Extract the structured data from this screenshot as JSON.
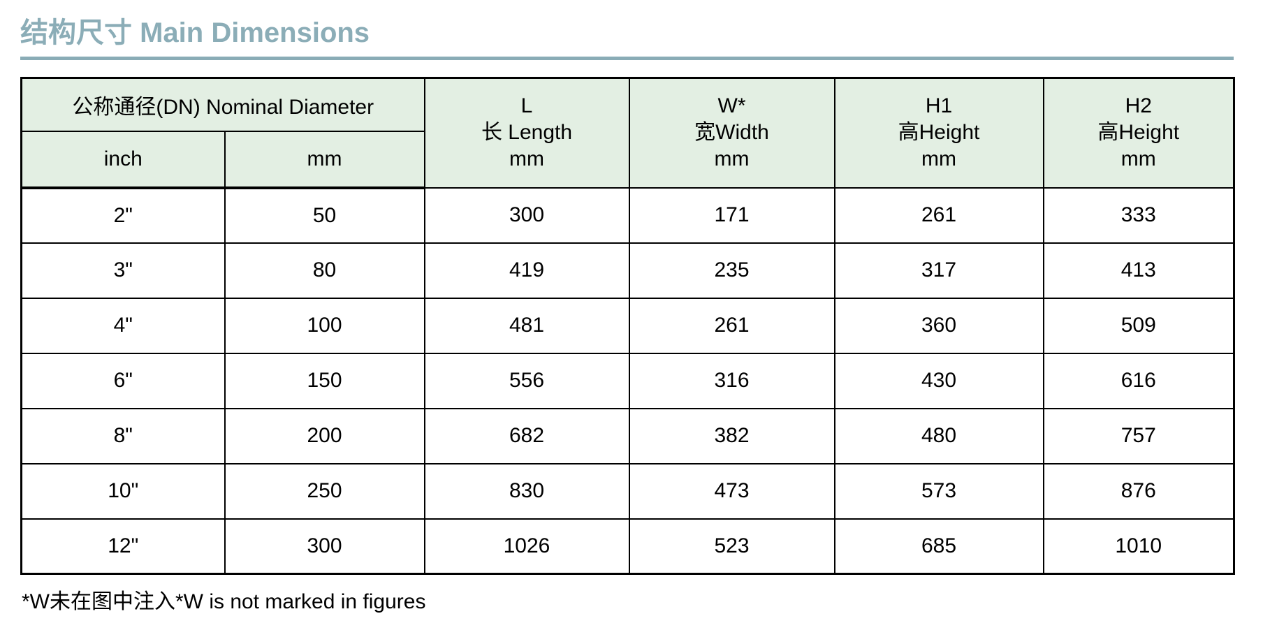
{
  "page": {
    "title": "结构尺寸 Main Dimensions",
    "footnote": "*W未在图中注入*W is not marked in figures"
  },
  "colors": {
    "title_text": "#8badb7",
    "title_rule": "#8aacb6",
    "header_bg": "#e3efe3",
    "table_border": "#000000"
  },
  "table": {
    "group_header": "公称通径(DN) Nominal Diameter",
    "sub_headers": {
      "inch": "inch",
      "mm": "mm"
    },
    "measure_headers": [
      "L\n长 Length\nmm",
      "W*\n宽Width\nmm",
      "H1\n高Height\nmm",
      "H2\n高Height\nmm"
    ],
    "row_keys": [
      "inch",
      "mm",
      "L",
      "W",
      "H1",
      "H2"
    ],
    "rows": [
      {
        "inch": "2\"",
        "mm": "50",
        "L": "300",
        "W": "171",
        "H1": "261",
        "H2": "333"
      },
      {
        "inch": "3\"",
        "mm": "80",
        "L": "419",
        "W": "235",
        "H1": "317",
        "H2": "413"
      },
      {
        "inch": "4\"",
        "mm": "100",
        "L": "481",
        "W": "261",
        "H1": "360",
        "H2": "509"
      },
      {
        "inch": "6\"",
        "mm": "150",
        "L": "556",
        "W": "316",
        "H1": "430",
        "H2": "616"
      },
      {
        "inch": "8\"",
        "mm": "200",
        "L": "682",
        "W": "382",
        "H1": "480",
        "H2": "757"
      },
      {
        "inch": "10\"",
        "mm": "250",
        "L": "830",
        "W": "473",
        "H1": "573",
        "H2": "876"
      },
      {
        "inch": "12\"",
        "mm": "300",
        "L": "1026",
        "W": "523",
        "H1": "685",
        "H2": "1010"
      }
    ]
  }
}
